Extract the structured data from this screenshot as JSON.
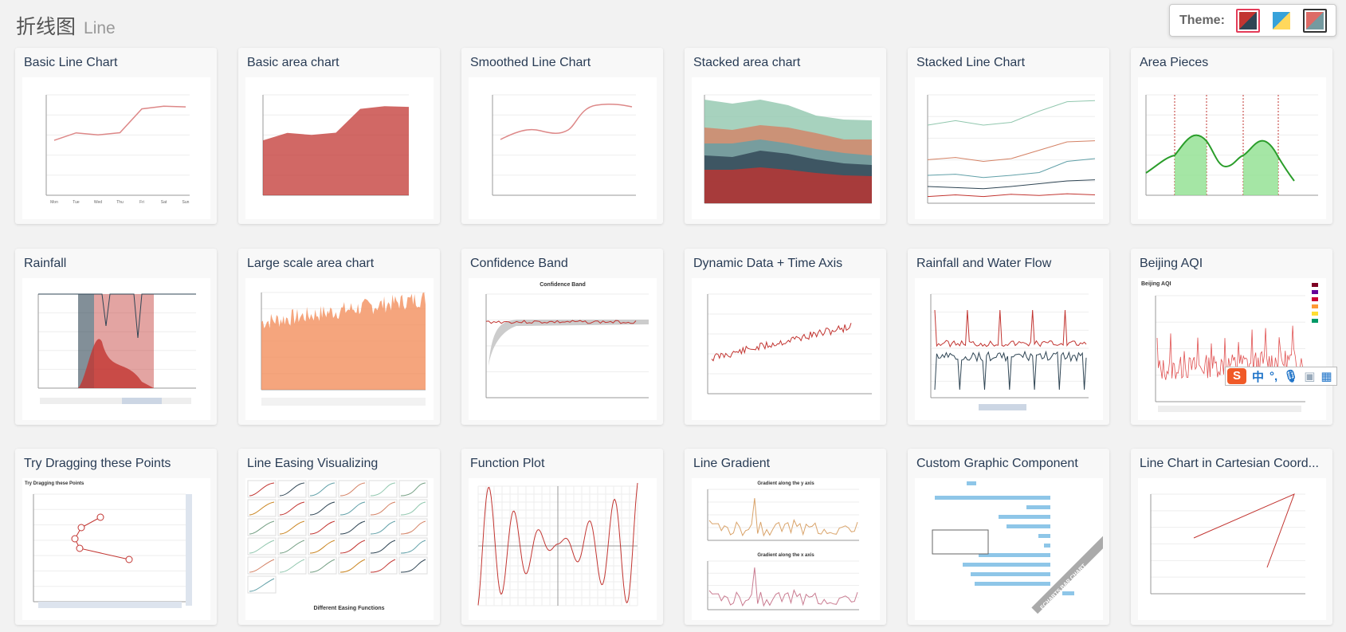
{
  "header": {
    "title_zh": "折线图",
    "title_en": "Line"
  },
  "theme": {
    "label": "Theme:",
    "options": [
      {
        "name": "default",
        "colors": [
          "#c23531",
          "#2f4554"
        ],
        "selected": true
      },
      {
        "name": "light",
        "colors": [
          "#37a2da",
          "#ffd85c"
        ],
        "selected": false
      },
      {
        "name": "dark",
        "colors": [
          "#dd6b66",
          "#759aa0"
        ],
        "selected": false
      }
    ]
  },
  "cards": [
    {
      "title": "Basic Line Chart",
      "kind": "line"
    },
    {
      "title": "Basic area chart",
      "kind": "area"
    },
    {
      "title": "Smoothed Line Chart",
      "kind": "smooth"
    },
    {
      "title": "Stacked area chart",
      "kind": "stackarea"
    },
    {
      "title": "Stacked Line Chart",
      "kind": "stackline"
    },
    {
      "title": "Area Pieces",
      "kind": "pieces"
    },
    {
      "title": "Rainfall",
      "kind": "rainfall"
    },
    {
      "title": "Large scale area chart",
      "kind": "large"
    },
    {
      "title": "Confidence Band",
      "kind": "band",
      "caption": "Confidence Band"
    },
    {
      "title": "Dynamic Data + Time Axis",
      "kind": "dynamic"
    },
    {
      "title": "Rainfall and Water Flow",
      "kind": "flow"
    },
    {
      "title": "Beijing AQI",
      "kind": "aqi",
      "caption": "Beijing AQI"
    },
    {
      "title": "Try Dragging these Points",
      "kind": "drag",
      "caption": "Try Dragging these Points"
    },
    {
      "title": "Line Easing Visualizing",
      "kind": "easing",
      "caption": "Different Easing Functions"
    },
    {
      "title": "Function Plot",
      "kind": "func"
    },
    {
      "title": "Line Gradient",
      "kind": "gradient",
      "caption": "Gradient along the y axis",
      "caption2": "Gradient along the x axis"
    },
    {
      "title": "Custom Graphic Component",
      "kind": "custom",
      "caption": "ECHARTS BAR CHART"
    },
    {
      "title": "Line Chart in Cartesian Coord...",
      "kind": "cartesian"
    }
  ],
  "basic_line": {
    "categories": [
      "Mon",
      "Tue",
      "Wed",
      "Thu",
      "Fri",
      "Sat",
      "Sun"
    ],
    "values": [
      820,
      932,
      901,
      934,
      1290,
      1330,
      1320
    ],
    "ylim": [
      0,
      1500
    ]
  },
  "ime_toolbar": {
    "logo": "S",
    "mode": "中",
    "punct": "°,",
    "mic": "mic-icon",
    "skin": "skin-icon",
    "menu": "grid-icon"
  }
}
